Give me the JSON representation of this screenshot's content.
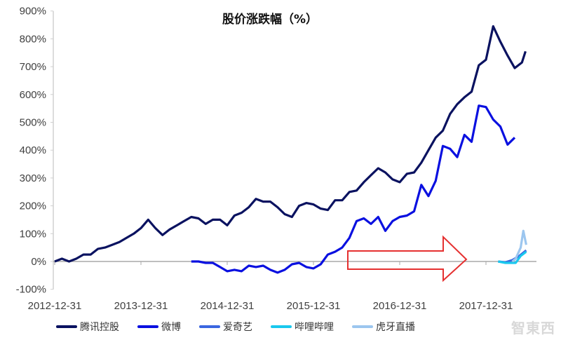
{
  "chart_data": {
    "type": "line",
    "title": "股价涨跌幅（%）",
    "xlabel": "",
    "ylabel": "",
    "ylim": [
      -100,
      900
    ],
    "yticks": [
      "-100%",
      "0%",
      "100%",
      "200%",
      "300%",
      "400%",
      "500%",
      "600%",
      "700%",
      "800%",
      "900%"
    ],
    "xticks": [
      "2012-12-31",
      "2013-12-31",
      "2014-12-31",
      "2015-12-31",
      "2016-12-31",
      "2017-12-31"
    ],
    "grid": false,
    "legend_position": "bottom",
    "annotation": "red outlined arrow pointing right, spanning roughly 2016-02 to 2017-05",
    "series": [
      {
        "name": "腾讯控股",
        "color": "#0a1260",
        "points": [
          [
            "2012-12",
            0
          ],
          [
            "2013-01",
            10
          ],
          [
            "2013-02",
            0
          ],
          [
            "2013-03",
            10
          ],
          [
            "2013-04",
            25
          ],
          [
            "2013-05",
            25
          ],
          [
            "2013-06",
            45
          ],
          [
            "2013-07",
            50
          ],
          [
            "2013-08",
            60
          ],
          [
            "2013-09",
            70
          ],
          [
            "2013-10",
            85
          ],
          [
            "2013-11",
            100
          ],
          [
            "2013-12",
            120
          ],
          [
            "2014-01",
            150
          ],
          [
            "2014-02",
            120
          ],
          [
            "2014-03",
            95
          ],
          [
            "2014-04",
            115
          ],
          [
            "2014-05",
            130
          ],
          [
            "2014-06",
            145
          ],
          [
            "2014-07",
            160
          ],
          [
            "2014-08",
            155
          ],
          [
            "2014-09",
            135
          ],
          [
            "2014-10",
            150
          ],
          [
            "2014-11",
            150
          ],
          [
            "2014-12",
            130
          ],
          [
            "2015-01",
            165
          ],
          [
            "2015-02",
            175
          ],
          [
            "2015-03",
            195
          ],
          [
            "2015-04",
            225
          ],
          [
            "2015-05",
            215
          ],
          [
            "2015-06",
            215
          ],
          [
            "2015-07",
            195
          ],
          [
            "2015-08",
            170
          ],
          [
            "2015-09",
            160
          ],
          [
            "2015-10",
            200
          ],
          [
            "2015-11",
            210
          ],
          [
            "2015-12",
            205
          ],
          [
            "2016-01",
            190
          ],
          [
            "2016-02",
            185
          ],
          [
            "2016-03",
            220
          ],
          [
            "2016-04",
            220
          ],
          [
            "2016-05",
            250
          ],
          [
            "2016-06",
            255
          ],
          [
            "2016-07",
            285
          ],
          [
            "2016-08",
            310
          ],
          [
            "2016-09",
            335
          ],
          [
            "2016-10",
            320
          ],
          [
            "2016-11",
            295
          ],
          [
            "2016-12",
            285
          ],
          [
            "2017-01",
            315
          ],
          [
            "2017-02",
            320
          ],
          [
            "2017-03",
            355
          ],
          [
            "2017-04",
            400
          ],
          [
            "2017-05",
            445
          ],
          [
            "2017-06",
            470
          ],
          [
            "2017-07",
            530
          ],
          [
            "2017-08",
            565
          ],
          [
            "2017-09",
            590
          ],
          [
            "2017-10",
            610
          ],
          [
            "2017-11",
            705
          ],
          [
            "2017-12",
            725
          ],
          [
            "2018-01",
            845
          ],
          [
            "2018-02",
            790
          ],
          [
            "2018-03",
            740
          ],
          [
            "2018-04",
            695
          ],
          [
            "2018-05",
            715
          ],
          [
            "2018-06-15",
            755
          ]
        ]
      },
      {
        "name": "微博",
        "color": "#0a10e0",
        "points": [
          [
            "2014-07",
            0
          ],
          [
            "2014-08",
            0
          ],
          [
            "2014-09",
            -5
          ],
          [
            "2014-10",
            -5
          ],
          [
            "2014-11",
            -20
          ],
          [
            "2014-12",
            -35
          ],
          [
            "2015-01",
            -30
          ],
          [
            "2015-02",
            -35
          ],
          [
            "2015-03",
            -15
          ],
          [
            "2015-04",
            -20
          ],
          [
            "2015-05",
            -15
          ],
          [
            "2015-06",
            -30
          ],
          [
            "2015-07",
            -40
          ],
          [
            "2015-08",
            -30
          ],
          [
            "2015-09",
            -10
          ],
          [
            "2015-10",
            -5
          ],
          [
            "2015-11",
            -20
          ],
          [
            "2015-12",
            -25
          ],
          [
            "2016-01",
            -10
          ],
          [
            "2016-02",
            25
          ],
          [
            "2016-03",
            35
          ],
          [
            "2016-04",
            50
          ],
          [
            "2016-05",
            85
          ],
          [
            "2016-06",
            145
          ],
          [
            "2016-07",
            155
          ],
          [
            "2016-08",
            135
          ],
          [
            "2016-09",
            160
          ],
          [
            "2016-10",
            110
          ],
          [
            "2016-11",
            145
          ],
          [
            "2016-12",
            160
          ],
          [
            "2017-01",
            165
          ],
          [
            "2017-02",
            180
          ],
          [
            "2017-03",
            275
          ],
          [
            "2017-04",
            235
          ],
          [
            "2017-05",
            290
          ],
          [
            "2017-06",
            415
          ],
          [
            "2017-07",
            405
          ],
          [
            "2017-08",
            375
          ],
          [
            "2017-09",
            455
          ],
          [
            "2017-10",
            430
          ],
          [
            "2017-11",
            560
          ],
          [
            "2017-12",
            555
          ],
          [
            "2018-01",
            510
          ],
          [
            "2018-02",
            485
          ],
          [
            "2018-03",
            420
          ],
          [
            "2018-04",
            445
          ]
        ]
      },
      {
        "name": "爱奇艺",
        "color": "#3a66e0",
        "points": [
          [
            "2018-02-21",
            0
          ],
          [
            "2018-03-21",
            -3
          ],
          [
            "2018-04-20",
            5
          ],
          [
            "2018-05-19",
            20
          ],
          [
            "2018-06-18",
            40
          ]
        ]
      },
      {
        "name": "哔哩哔哩",
        "color": "#19c8ee",
        "points": [
          [
            "2018-02-21",
            0
          ],
          [
            "2018-03-21",
            -5
          ],
          [
            "2018-05-04",
            -5
          ],
          [
            "2018-05-25",
            20
          ],
          [
            "2018-06-18",
            35
          ]
        ]
      },
      {
        "name": "虎牙直播",
        "color": "#9cc6ef",
        "points": [
          [
            "2018-04-20",
            0
          ],
          [
            "2018-05-04",
            10
          ],
          [
            "2018-05-25",
            50
          ],
          [
            "2018-06-06",
            110
          ],
          [
            "2018-06-18",
            60
          ]
        ]
      }
    ]
  },
  "watermark": "智东西"
}
